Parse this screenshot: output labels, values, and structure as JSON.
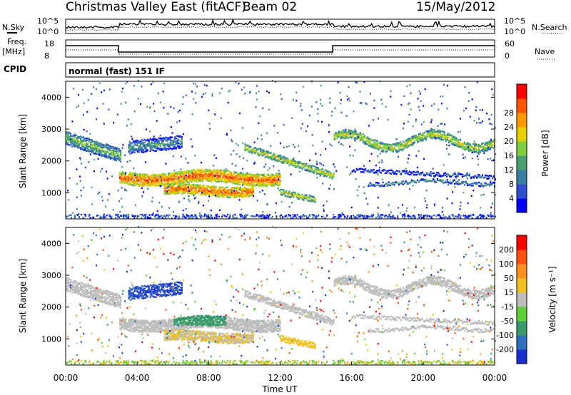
{
  "header": {
    "title": "Christmas Valley East (fitACF)",
    "beam": "Beam 02",
    "date": "15/May/2012"
  },
  "strip_labels": {
    "nsky": "N.Sky",
    "nsearch": "N.Search",
    "freq": "Freq.",
    "freq_unit": "[MHz]",
    "nave": "Nave",
    "cpid": "CPID",
    "cpid_text": "normal (fast) 151 IF"
  },
  "strip_ticks": {
    "noise_top": "10^5",
    "noise_bottom": "10^0",
    "freq_top": "18",
    "freq_bottom": "8",
    "nave_top": "60",
    "nave_bottom": "0"
  },
  "chart_data": [
    {
      "type": "heatmap",
      "name": "power",
      "ylabel": "Slant Range [km]",
      "ylim": [
        180,
        4500
      ],
      "yticks": [
        1000,
        2000,
        3000,
        4000
      ],
      "xlim": [
        0,
        24
      ],
      "colorbar": {
        "label": "Power [dB]",
        "ticks": [
          "4",
          "8",
          "12",
          "16",
          "20",
          "24",
          "28"
        ],
        "colors": [
          "#0000ff",
          "#2f4fd0",
          "#3a7fa0",
          "#4aa070",
          "#7fcf3f",
          "#e6d000",
          "#ff9900",
          "#ff5500",
          "#ff0000"
        ]
      }
    },
    {
      "type": "heatmap",
      "name": "velocity",
      "ylabel": "Slant Range [km]",
      "ylim": [
        180,
        4500
      ],
      "yticks": [
        1000,
        2000,
        3000,
        4000
      ],
      "xlim": [
        0,
        24
      ],
      "xlabel": "Time UT",
      "xticks": [
        "00:00",
        "04:00",
        "08:00",
        "12:00",
        "16:00",
        "20:00",
        "00:00"
      ],
      "colorbar": {
        "label": "Velocity [m s⁻¹]",
        "ticks": [
          "200",
          "100",
          "50",
          "15",
          "-15",
          "-50",
          "-100",
          "-200"
        ],
        "colors": [
          "#1a2fd0",
          "#2f6fc0",
          "#3a9a6a",
          "#5fcf3a",
          "#bdbdbd",
          "#f0c020",
          "#ff9020",
          "#ff5010",
          "#ff0000"
        ]
      }
    }
  ],
  "colors": {
    "ground_scatter": "#bdbdbd"
  }
}
